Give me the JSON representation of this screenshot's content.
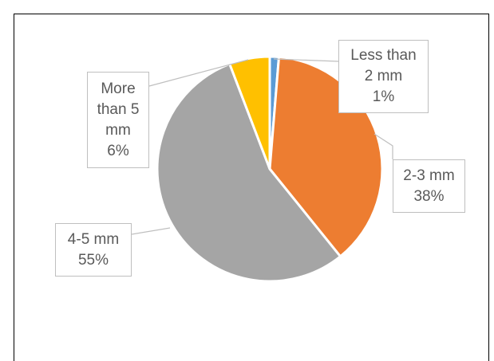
{
  "chart_data": {
    "type": "pie",
    "title": "",
    "categories": [
      "Less than 2 mm",
      "2-3 mm",
      "4-5 mm",
      "More than 5 mm"
    ],
    "values": [
      1.3,
      37.9,
      55.0,
      5.8
    ],
    "percent_labels": [
      "1%",
      "38%",
      "55%",
      "6%"
    ],
    "colors": [
      "#5b9bd5",
      "#ed7d31",
      "#a5a5a5",
      "#ffc000"
    ],
    "start_angle_deg": 0,
    "direction": "clockwise",
    "legend": "none",
    "data_labels": "callouts-with-category-and-percent"
  },
  "labels": {
    "less_than_2": {
      "line1": "Less than",
      "line2": "2 mm",
      "pct": "1%"
    },
    "mm_2_3": {
      "line1": "2-3 mm",
      "pct": "38%"
    },
    "mm_4_5": {
      "line1": "4-5 mm",
      "pct": "55%"
    },
    "more_than_5": {
      "line1": "More",
      "line2": "than 5",
      "line3": "mm",
      "pct": "6%"
    }
  }
}
